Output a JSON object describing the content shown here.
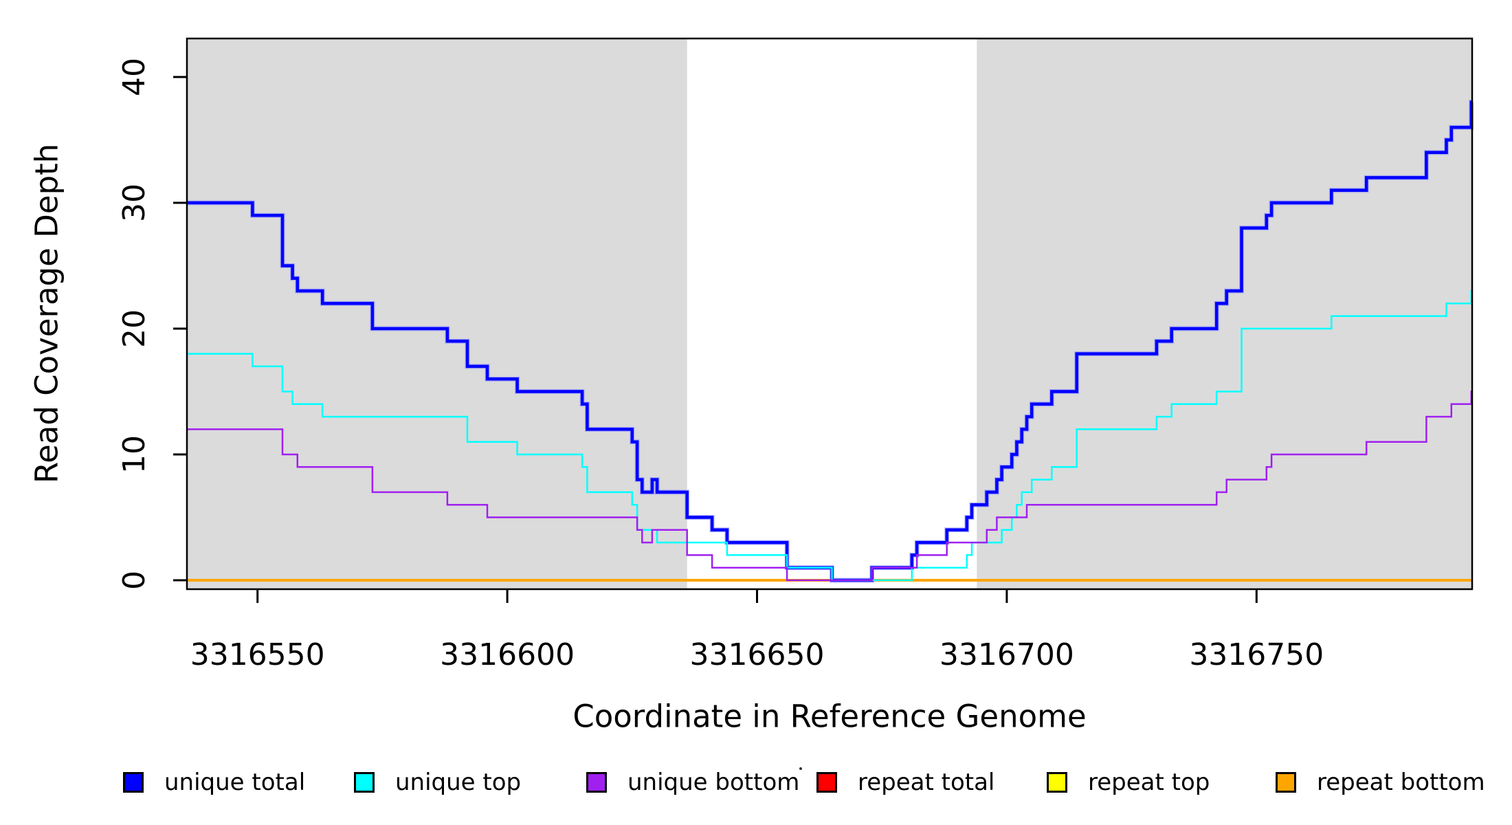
{
  "figure": {
    "background": "#FFFFFF"
  },
  "chart_data": {
    "type": "step-line",
    "title": "",
    "xlabel": "Coordinate in Reference Genome",
    "ylabel": "Read Coverage Depth",
    "x_range": [
      3316536,
      3316793
    ],
    "y_range": [
      0,
      43
    ],
    "x_ticks": [
      3316550,
      3316600,
      3316650,
      3316700,
      3316750
    ],
    "y_ticks": [
      0,
      10,
      20,
      30,
      40
    ],
    "grid": false,
    "legend_position": "bottom",
    "shaded_regions": {
      "color": "#DBDBDB",
      "ranges": [
        [
          3316536,
          3316636
        ],
        [
          3316694,
          3316793
        ]
      ]
    },
    "series": [
      {
        "name": "unique total",
        "color": "#0000FF",
        "line_width": 4.5,
        "steps": [
          [
            3316536,
            30
          ],
          [
            3316549,
            29
          ],
          [
            3316555,
            25
          ],
          [
            3316557,
            24
          ],
          [
            3316558,
            23
          ],
          [
            3316563,
            22
          ],
          [
            3316573,
            20
          ],
          [
            3316588,
            19
          ],
          [
            3316592,
            17
          ],
          [
            3316596,
            16
          ],
          [
            3316602,
            15
          ],
          [
            3316615,
            14
          ],
          [
            3316616,
            12
          ],
          [
            3316625,
            11
          ],
          [
            3316626,
            8
          ],
          [
            3316627,
            7
          ],
          [
            3316629,
            8
          ],
          [
            3316630,
            7
          ],
          [
            3316636,
            5
          ],
          [
            3316641,
            4
          ],
          [
            3316644,
            3
          ],
          [
            3316656,
            1
          ],
          [
            3316665,
            0
          ],
          [
            3316673,
            1
          ],
          [
            3316681,
            2
          ],
          [
            3316682,
            3
          ],
          [
            3316688,
            4
          ],
          [
            3316692,
            5
          ],
          [
            3316693,
            6
          ],
          [
            3316696,
            7
          ],
          [
            3316698,
            8
          ],
          [
            3316699,
            9
          ],
          [
            3316701,
            10
          ],
          [
            3316702,
            11
          ],
          [
            3316703,
            12
          ],
          [
            3316704,
            13
          ],
          [
            3316705,
            14
          ],
          [
            3316709,
            15
          ],
          [
            3316714,
            18
          ],
          [
            3316730,
            19
          ],
          [
            3316733,
            20
          ],
          [
            3316742,
            22
          ],
          [
            3316744,
            23
          ],
          [
            3316747,
            28
          ],
          [
            3316752,
            29
          ],
          [
            3316753,
            30
          ],
          [
            3316765,
            31
          ],
          [
            3316772,
            32
          ],
          [
            3316784,
            34
          ],
          [
            3316788,
            35
          ],
          [
            3316789,
            36
          ],
          [
            3316793,
            38
          ]
        ]
      },
      {
        "name": "unique top",
        "color": "#00FFFF",
        "line_width": 2.5,
        "steps": [
          [
            3316536,
            18
          ],
          [
            3316549,
            17
          ],
          [
            3316555,
            15
          ],
          [
            3316557,
            14
          ],
          [
            3316563,
            13
          ],
          [
            3316592,
            11
          ],
          [
            3316602,
            10
          ],
          [
            3316615,
            9
          ],
          [
            3316616,
            7
          ],
          [
            3316625,
            6
          ],
          [
            3316626,
            4
          ],
          [
            3316630,
            3
          ],
          [
            3316644,
            2
          ],
          [
            3316656,
            1
          ],
          [
            3316665,
            0
          ],
          [
            3316681,
            1
          ],
          [
            3316692,
            2
          ],
          [
            3316693,
            3
          ],
          [
            3316699,
            4
          ],
          [
            3316701,
            5
          ],
          [
            3316702,
            6
          ],
          [
            3316703,
            7
          ],
          [
            3316705,
            8
          ],
          [
            3316709,
            9
          ],
          [
            3316714,
            12
          ],
          [
            3316730,
            13
          ],
          [
            3316733,
            14
          ],
          [
            3316742,
            15
          ],
          [
            3316747,
            20
          ],
          [
            3316765,
            21
          ],
          [
            3316788,
            22
          ],
          [
            3316793,
            23
          ]
        ]
      },
      {
        "name": "unique bottom",
        "color": "#A020F0",
        "line_width": 2.5,
        "steps": [
          [
            3316536,
            12
          ],
          [
            3316555,
            10
          ],
          [
            3316558,
            9
          ],
          [
            3316573,
            7
          ],
          [
            3316588,
            6
          ],
          [
            3316596,
            5
          ],
          [
            3316626,
            4
          ],
          [
            3316627,
            3
          ],
          [
            3316629,
            4
          ],
          [
            3316636,
            2
          ],
          [
            3316641,
            1
          ],
          [
            3316656,
            0
          ],
          [
            3316673,
            1
          ],
          [
            3316682,
            2
          ],
          [
            3316688,
            3
          ],
          [
            3316696,
            4
          ],
          [
            3316698,
            5
          ],
          [
            3316704,
            6
          ],
          [
            3316742,
            7
          ],
          [
            3316744,
            8
          ],
          [
            3316752,
            9
          ],
          [
            3316753,
            10
          ],
          [
            3316772,
            11
          ],
          [
            3316784,
            13
          ],
          [
            3316789,
            14
          ],
          [
            3316793,
            15
          ]
        ]
      },
      {
        "name": "repeat total",
        "color": "#FF0000",
        "line_width": 2.5,
        "steps": [
          [
            3316536,
            0
          ]
        ]
      },
      {
        "name": "repeat top",
        "color": "#FFFF00",
        "line_width": 2.5,
        "steps": [
          [
            3316536,
            0
          ]
        ]
      },
      {
        "name": "repeat bottom",
        "color": "#FFA500",
        "line_width": 4,
        "steps": [
          [
            3316536,
            0
          ]
        ]
      }
    ]
  }
}
